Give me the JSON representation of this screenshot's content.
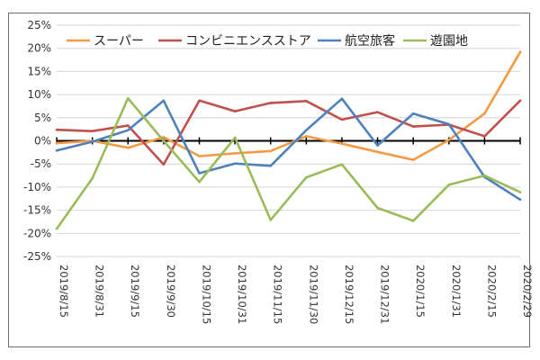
{
  "colors": {
    "super": "#f39a43",
    "convenience": "#c0504d",
    "airline": "#4f81bd",
    "amusement": "#9bbb59",
    "grid": "#d4d4d4",
    "axis": "#000000"
  },
  "chart_data": {
    "type": "line",
    "title": "",
    "xlabel": "",
    "ylabel": "",
    "ylim": [
      -25,
      25
    ],
    "y_ticks": [
      -25,
      -20,
      -15,
      -10,
      -5,
      0,
      5,
      10,
      15,
      20,
      25
    ],
    "y_tick_labels": [
      "-25%",
      "-20%",
      "-15%",
      "-10%",
      "-5%",
      "0%",
      "5%",
      "10%",
      "15%",
      "20%",
      "25%"
    ],
    "grid": "horizontal",
    "legend_position": "top",
    "categories": [
      "2019/8/15",
      "2019/8/31",
      "2019/9/15",
      "2019/9/30",
      "2019/10/15",
      "2019/10/31",
      "2019/11/15",
      "2019/11/30",
      "2019/12/15",
      "2019/12/31",
      "2020/1/15",
      "2020/1/31",
      "2020/2/15",
      "2020/2/29"
    ],
    "series": [
      {
        "key": "super",
        "name": "スーパー",
        "values": [
          -0.5,
          0.0,
          -1.5,
          0.8,
          -3.3,
          -2.7,
          -2.2,
          1.0,
          -0.6,
          -2.4,
          -4.1,
          0.2,
          5.9,
          19.2
        ]
      },
      {
        "key": "convenience",
        "name": "コンビニエンスストア",
        "values": [
          2.4,
          2.1,
          3.3,
          -5.1,
          8.7,
          6.4,
          8.2,
          8.6,
          4.6,
          6.2,
          3.1,
          3.5,
          1.0,
          8.7
        ]
      },
      {
        "key": "airline",
        "name": "航空旅客",
        "values": [
          -2.1,
          -0.2,
          2.3,
          8.7,
          -7.0,
          -4.9,
          -5.4,
          2.3,
          9.1,
          -1.0,
          5.9,
          3.6,
          -7.8,
          -12.7
        ]
      },
      {
        "key": "amusement",
        "name": "遊園地",
        "values": [
          -19.0,
          -8.1,
          9.2,
          0.0,
          -8.9,
          0.7,
          -17.1,
          -7.9,
          -5.1,
          -14.5,
          -17.3,
          -9.5,
          -7.5,
          -11.1
        ]
      }
    ]
  }
}
